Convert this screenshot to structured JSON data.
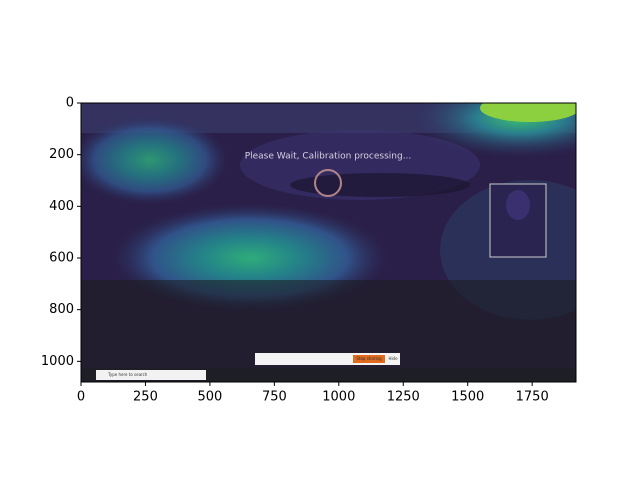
{
  "chart_data": {
    "type": "image",
    "xlim": [
      0,
      1920
    ],
    "ylim": [
      1080,
      0
    ],
    "xticks": [
      0,
      250,
      500,
      750,
      1000,
      1250,
      1500,
      1750
    ],
    "yticks": [
      0,
      200,
      400,
      600,
      800,
      1000
    ],
    "annotations": [
      "Please Wait, Calibration processing...",
      "Type here to search",
      "Stop sharing",
      "Hide"
    ]
  }
}
